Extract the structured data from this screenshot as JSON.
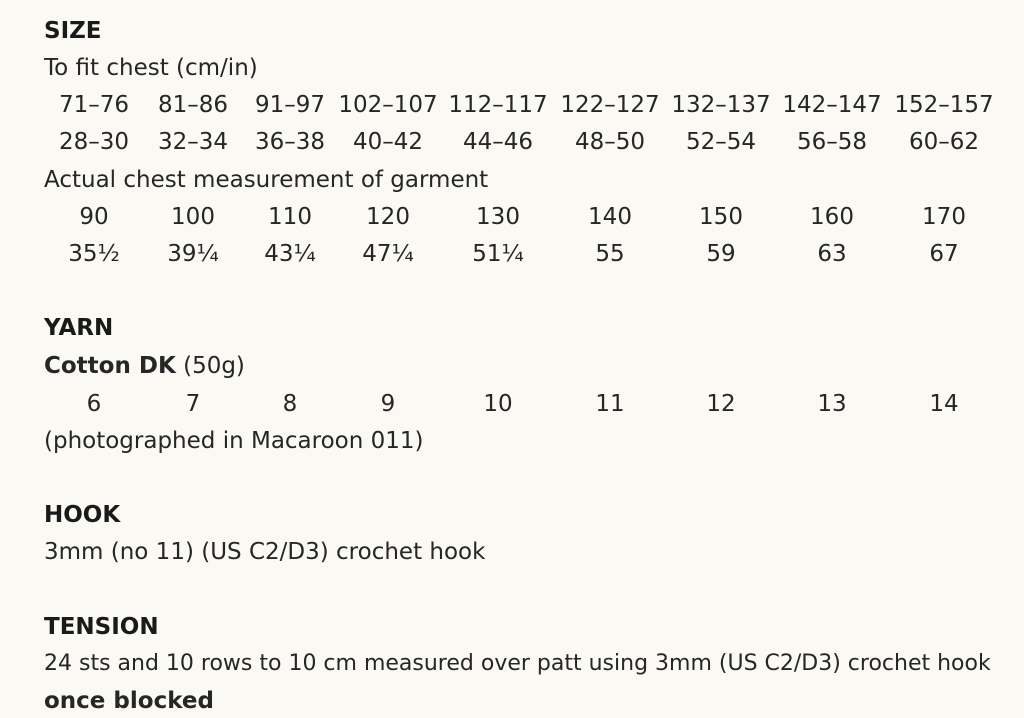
{
  "size": {
    "heading": "SIZE",
    "fit_label": "To fit chest (cm/in)",
    "fit_cm": [
      "71–76",
      "81–86",
      "91–97",
      "102–107",
      "112–117",
      "122–127",
      "132–137",
      "142–147",
      "152–157"
    ],
    "fit_in": [
      "28–30",
      "32–34",
      "36–38",
      "40–42",
      "44–46",
      "48–50",
      "52–54",
      "56–58",
      "60–62"
    ],
    "actual_label": "Actual chest measurement of garment",
    "actual_cm": [
      "90",
      "100",
      "110",
      "120",
      "130",
      "140",
      "150",
      "160",
      "170"
    ],
    "actual_in": [
      "35½",
      "39¼",
      "43¼",
      "47¼",
      "51¼",
      "55",
      "59",
      "63",
      "67"
    ]
  },
  "yarn": {
    "heading": "YARN",
    "name": "Cotton DK",
    "weight": " (50g)",
    "balls": [
      "6",
      "7",
      "8",
      "9",
      "10",
      "11",
      "12",
      "13",
      "14"
    ],
    "photographed": "(photographed in Macaroon 011)"
  },
  "hook": {
    "heading": "HOOK",
    "text": "3mm (no 11) (US C2/D3) crochet hook"
  },
  "tension": {
    "heading": "TENSION",
    "text": "24 sts and 10 rows to 10 cm measured over patt using 3mm (US C2/D3) crochet hook",
    "note": "once blocked"
  }
}
